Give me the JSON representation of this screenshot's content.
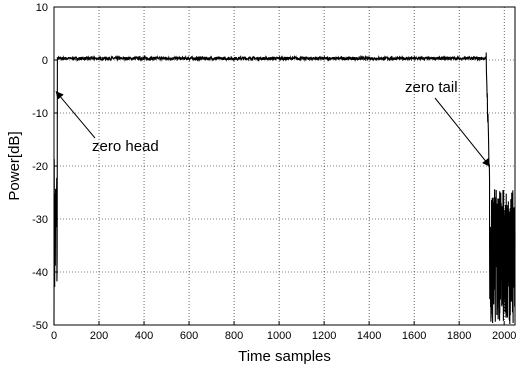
{
  "chart_data": {
    "type": "line",
    "title": "",
    "xlabel": "Time samples",
    "ylabel": "Power[dB]",
    "xlim": [
      0,
      2048
    ],
    "ylim": [
      -50,
      10
    ],
    "grid": true,
    "x_ticks": [
      0,
      200,
      400,
      600,
      800,
      1000,
      1200,
      1400,
      1600,
      1800,
      2000
    ],
    "y_ticks": [
      10,
      0,
      -10,
      -20,
      -30,
      -40,
      -50
    ],
    "series": [
      {
        "color": "#000000",
        "segments": [
          {
            "x_range": [
              0,
              14
            ],
            "description_values": {
              "min": -50,
              "max": -16
            }
          },
          {
            "x_range": [
              15,
              1920
            ],
            "level_db": 0.3,
            "ripple_db": 0.6
          },
          {
            "x_range": [
              1920,
              1935
            ],
            "from_db": 0,
            "to_db": -22
          },
          {
            "x_range": [
              1935,
              2048
            ],
            "description_values": {
              "min": -50,
              "max": -21
            }
          }
        ]
      }
    ],
    "annotations": [
      {
        "text": "zero head",
        "target": [
          10,
          -6
        ]
      },
      {
        "text": "zero tail",
        "target": [
          1935,
          -20
        ]
      }
    ]
  }
}
